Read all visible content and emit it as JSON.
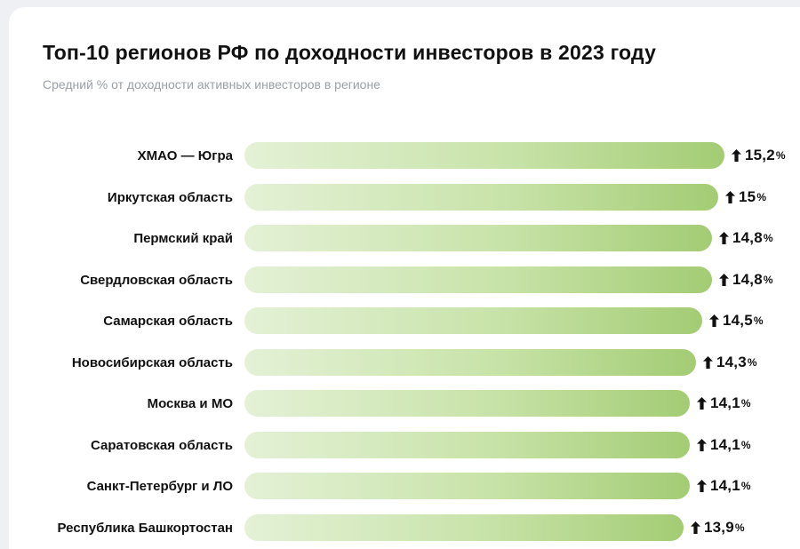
{
  "page": {
    "title": "Топ-10 регионов РФ по доходности инвесторов в 2023 году",
    "subtitle": "Средний % от доходности активных инвесторов в регионе"
  },
  "chart_data": {
    "type": "bar",
    "orientation": "horizontal",
    "title": "Топ-10 регионов РФ по доходности инвесторов в 2023 году",
    "subtitle": "Средний % от доходности активных инвесторов в регионе",
    "unit": "%",
    "trend_icon": "up-arrow",
    "xlim": [
      0,
      15.2
    ],
    "bar_gradient": [
      "#e4f1d6",
      "#a3cc74"
    ],
    "categories": [
      "ХМАО — Югра",
      "Иркутская область",
      "Пермский край",
      "Свердловская область",
      "Самарская область",
      "Новосибирская область",
      "Москва и МО",
      "Саратовская область",
      "Санкт-Петербург и ЛО",
      "Республика Башкортостан"
    ],
    "values": [
      15.2,
      15,
      14.8,
      14.8,
      14.5,
      14.3,
      14.1,
      14.1,
      14.1,
      13.9
    ],
    "value_labels": [
      "15,2",
      "15",
      "14,8",
      "14,8",
      "14,5",
      "14,3",
      "14,1",
      "14,1",
      "14,1",
      "13,9"
    ]
  }
}
